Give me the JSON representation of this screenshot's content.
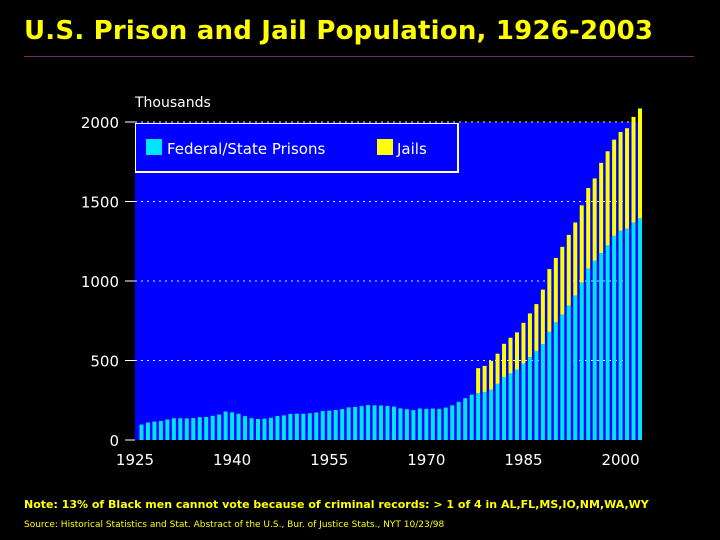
{
  "title": "U.S. Prison and Jail Population, 1926-2003",
  "note": "Note: 13% of Black men cannot vote because of criminal records: > 1 of 4 in AL,FL,MS,IO,NM,WA,WY",
  "source": "Source: Historical Statistics and Stat. Abstract of the U.S., Bur. of Justice Stats., NYT 10/23/98",
  "colors": {
    "background": "#000000",
    "plot_area": "#0000ff",
    "prisons": "#00e5ff",
    "jails": "#ffff00",
    "text": "#ffffff",
    "accent": "#ffff00"
  },
  "chart_data": {
    "type": "bar",
    "stacked": true,
    "title": "U.S. Prison and Jail Population, 1926-2003",
    "ylabel": "Thousands",
    "ylim": [
      0,
      2000
    ],
    "xlim": [
      1925,
      2003
    ],
    "yticks": [
      0,
      500,
      1000,
      1500,
      2000
    ],
    "xticks": [
      1925,
      1940,
      1955,
      1970,
      1985,
      2000
    ],
    "grid": "horizontal-dotted",
    "legend_position": "top-left",
    "x": [
      1926,
      1927,
      1928,
      1929,
      1930,
      1931,
      1932,
      1933,
      1934,
      1935,
      1936,
      1937,
      1938,
      1939,
      1940,
      1941,
      1942,
      1943,
      1944,
      1945,
      1946,
      1947,
      1948,
      1949,
      1950,
      1951,
      1952,
      1953,
      1954,
      1955,
      1956,
      1957,
      1958,
      1959,
      1960,
      1961,
      1962,
      1963,
      1964,
      1965,
      1966,
      1967,
      1968,
      1969,
      1970,
      1971,
      1972,
      1973,
      1974,
      1975,
      1976,
      1977,
      1978,
      1979,
      1980,
      1981,
      1982,
      1983,
      1984,
      1985,
      1986,
      1987,
      1988,
      1989,
      1990,
      1991,
      1992,
      1993,
      1994,
      1995,
      1996,
      1997,
      1998,
      1999,
      2000,
      2001,
      2002,
      2003
    ],
    "series": [
      {
        "name": "Federal/State Prisons",
        "values": [
          97,
          110,
          116,
          120,
          129,
          137,
          137,
          136,
          138,
          144,
          145,
          152,
          160,
          179,
          174,
          165,
          150,
          137,
          132,
          134,
          140,
          151,
          155,
          164,
          166,
          165,
          168,
          173,
          182,
          185,
          189,
          195,
          205,
          208,
          213,
          220,
          218,
          217,
          214,
          210,
          199,
          194,
          188,
          198,
          196,
          198,
          196,
          204,
          218,
          240,
          263,
          285,
          294,
          301,
          316,
          353,
          396,
          419,
          443,
          481,
          522,
          560,
          603,
          680,
          740,
          789,
          846,
          909,
          990,
          1078,
          1127,
          1176,
          1224,
          1284,
          1316,
          1330,
          1367,
          1394
        ]
      },
      {
        "name": "Jails",
        "values": [
          0,
          0,
          0,
          0,
          0,
          0,
          0,
          0,
          0,
          0,
          0,
          0,
          0,
          0,
          0,
          0,
          0,
          0,
          0,
          0,
          0,
          0,
          0,
          0,
          0,
          0,
          0,
          0,
          0,
          0,
          0,
          0,
          0,
          0,
          0,
          0,
          0,
          0,
          0,
          0,
          0,
          0,
          0,
          0,
          0,
          0,
          0,
          0,
          0,
          0,
          0,
          0,
          158,
          165,
          182,
          190,
          209,
          224,
          234,
          256,
          274,
          295,
          343,
          395,
          405,
          426,
          444,
          459,
          486,
          507,
          518,
          567,
          592,
          605,
          621,
          631,
          665,
          691
        ]
      }
    ]
  }
}
